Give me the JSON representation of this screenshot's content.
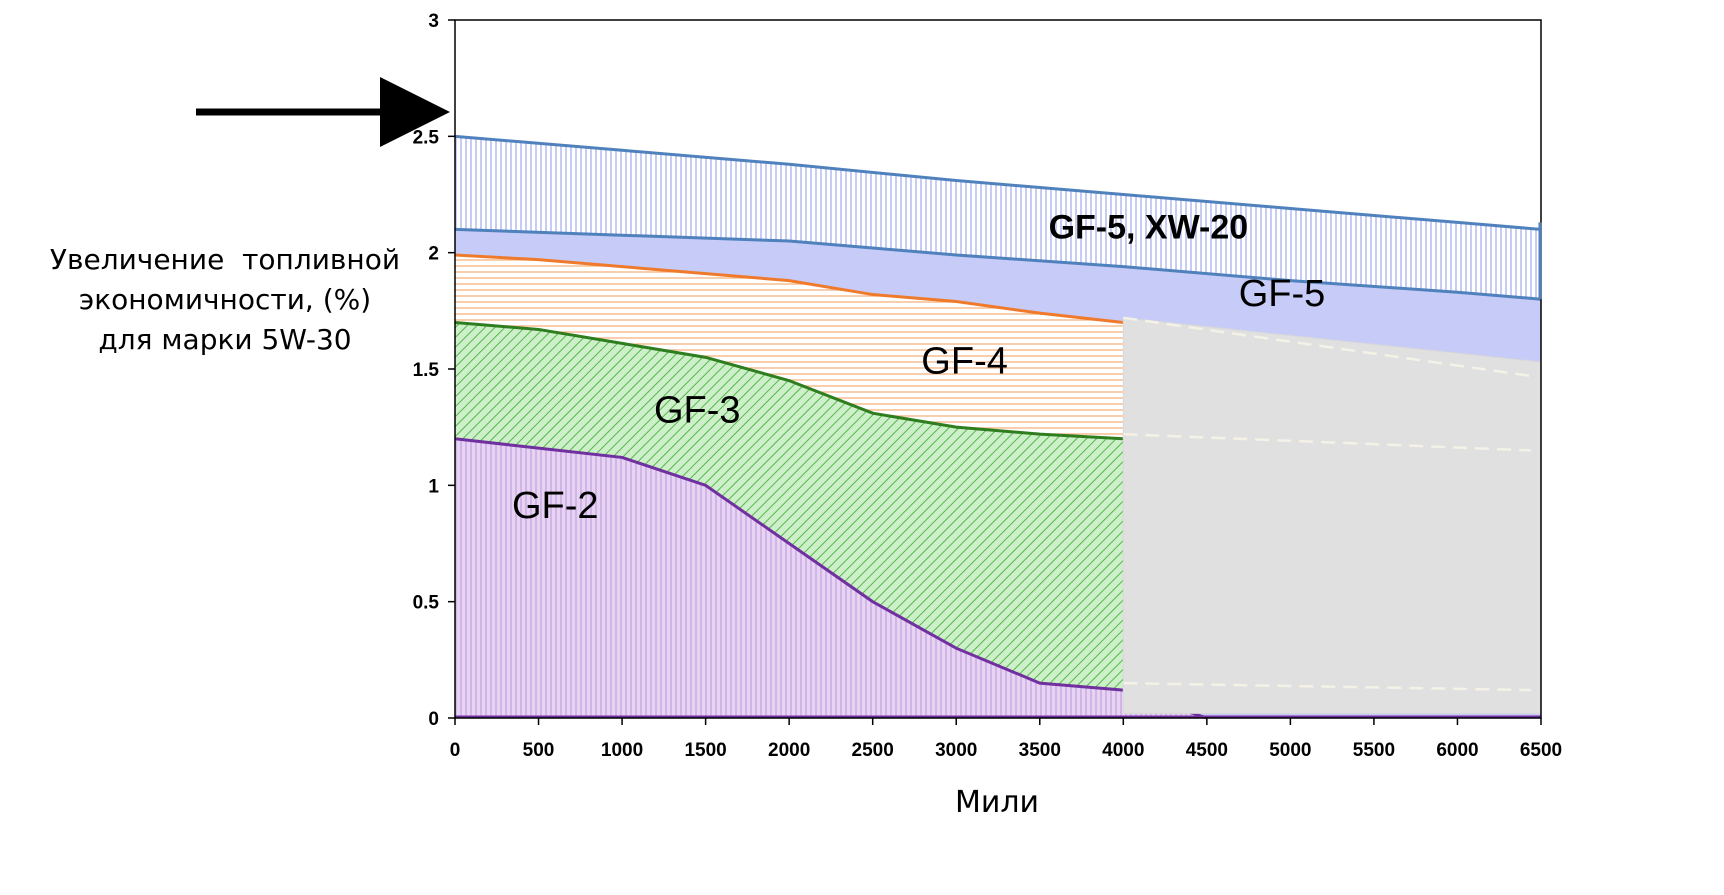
{
  "chart_data": {
    "type": "area",
    "xlabel": "Мили",
    "ylabel_lines": [
      "Увеличение  топливной",
      "экономичности, (%)",
      "для марки 5W-30"
    ],
    "xlim": [
      0,
      6500
    ],
    "ylim": [
      0,
      3
    ],
    "x_ticks": [
      0,
      500,
      1000,
      1500,
      2000,
      2500,
      3000,
      3500,
      4000,
      4500,
      5000,
      5500,
      6000,
      6500
    ],
    "y_ticks": [
      0,
      0.5,
      1,
      1.5,
      2,
      2.5,
      3
    ],
    "y_tick_labels": [
      "0",
      "0.5",
      "1",
      "1.5",
      "2",
      "2.5",
      "3"
    ],
    "grid": false,
    "series": [
      {
        "name": "GF-2",
        "color": "#7030A0",
        "fill": "#E6D4F2",
        "hatch": "#C9A8E3",
        "x": [
          0,
          500,
          1000,
          1500,
          2000,
          2500,
          3000,
          3500,
          4000,
          4500
        ],
        "y": [
          1.2,
          1.16,
          1.12,
          1.0,
          0.75,
          0.5,
          0.3,
          0.15,
          0.12,
          0.0
        ]
      },
      {
        "name": "GF-3",
        "color": "#2E7D1E",
        "fill": "#CDEFC9",
        "hatch": "#55B84A",
        "x": [
          0,
          500,
          1000,
          1500,
          2000,
          2500,
          3000,
          3500,
          4000
        ],
        "y": [
          1.7,
          1.67,
          1.61,
          1.55,
          1.45,
          1.31,
          1.25,
          1.22,
          1.2
        ]
      },
      {
        "name": "GF-4",
        "color": "#F07A2B",
        "fill": "#FFFFFF",
        "hatch": "#F7B98A",
        "x": [
          0,
          500,
          1000,
          1500,
          2000,
          2500,
          3000,
          3500,
          4000
        ],
        "y": [
          1.99,
          1.97,
          1.94,
          1.91,
          1.88,
          1.82,
          1.79,
          1.74,
          1.7
        ]
      },
      {
        "name": "GF-5",
        "color": "#4F81BD",
        "fill": "#C7CBF8",
        "x": [
          0,
          2000,
          2500,
          3000,
          4000,
          5000,
          6000,
          6500
        ],
        "y": [
          2.1,
          2.05,
          2.02,
          1.99,
          1.94,
          1.88,
          1.83,
          1.8
        ]
      },
      {
        "name": "GF-5, XW-20",
        "color": "#4F81BD",
        "fill": "#FFFFFF",
        "hatch": "#AFB6F0",
        "x": [
          0,
          1000,
          2000,
          3000,
          4000,
          5000,
          6000,
          6500
        ],
        "y": [
          2.5,
          2.44,
          2.38,
          2.31,
          2.25,
          2.19,
          2.13,
          2.1
        ]
      }
    ],
    "gray_box": {
      "x0": 4000,
      "x1": 6500,
      "y0_left": 0.02,
      "y1_left": 1.72,
      "y0_right": 0.02,
      "y1_right": 1.53,
      "color": "#E0E0E0"
    },
    "annotations": [
      {
        "text": "GF-2",
        "x": 600,
        "y": 0.86,
        "bold": false
      },
      {
        "text": "GF-3",
        "x": 1450,
        "y": 1.27,
        "bold": false
      },
      {
        "text": "GF-4",
        "x": 3050,
        "y": 1.48,
        "bold": false
      },
      {
        "text": "GF-5",
        "x": 4950,
        "y": 1.77,
        "bold": false
      },
      {
        "text": "GF-5, XW-20",
        "x": 4150,
        "y": 2.06,
        "bold": true
      }
    ]
  }
}
